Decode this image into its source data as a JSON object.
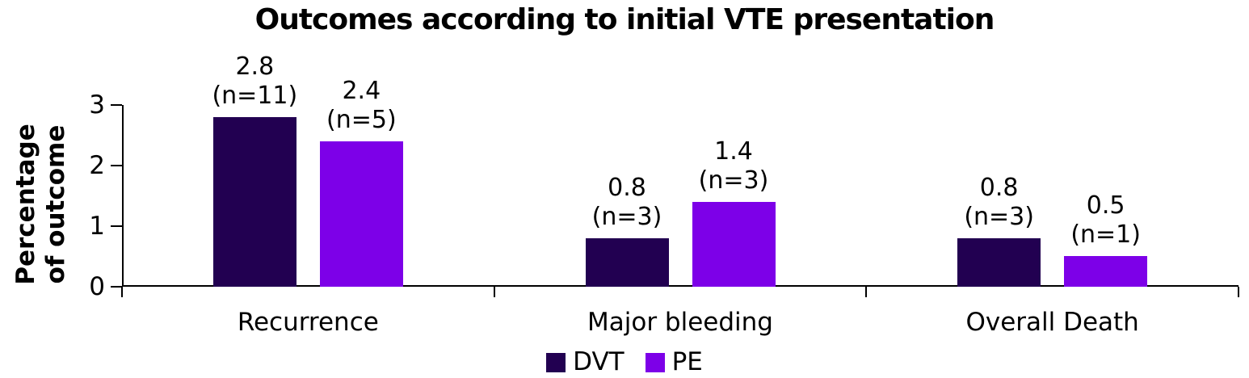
{
  "title": "Outcomes according to initial VTE presentation",
  "y_axis": {
    "title_line1": "Percentage",
    "title_line2": "of outcome"
  },
  "chart_data": {
    "type": "bar",
    "title": "Outcomes according to initial VTE presentation",
    "categories": [
      "Recurrence",
      "Major bleeding",
      "Overall Death"
    ],
    "series": [
      {
        "name": "DVT",
        "color": "#220051",
        "values": [
          2.8,
          0.8,
          0.8
        ],
        "n_counts": [
          11,
          3,
          3
        ]
      },
      {
        "name": "PE",
        "color": "#7D00E8",
        "values": [
          2.4,
          1.4,
          0.5
        ],
        "n_counts": [
          5,
          3,
          1
        ]
      }
    ],
    "bar_label_format": "{value} (n={n})",
    "xlabel": "",
    "ylabel": "Percentage of outcome",
    "ylim": [
      0,
      3
    ],
    "yticks": [
      0,
      1,
      2,
      3
    ],
    "grid": false,
    "legend_position": "bottom",
    "background_color": "#ffffff",
    "axis_color": "#000000",
    "text_color": "#000000"
  }
}
